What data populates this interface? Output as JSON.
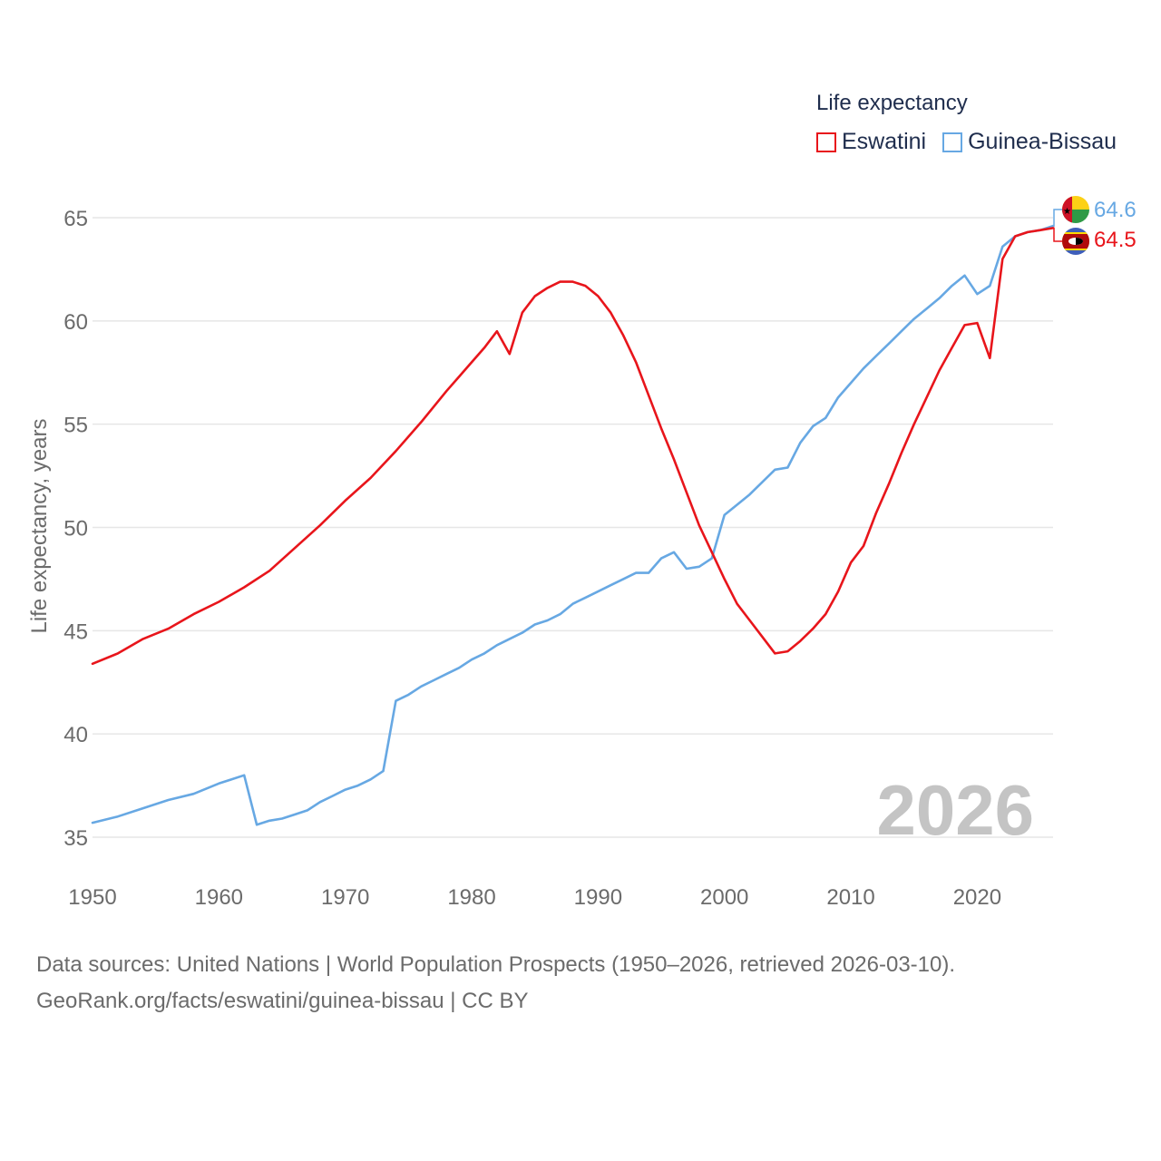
{
  "legend": {
    "title": "Life expectancy",
    "items": [
      {
        "name": "Eswatini",
        "color": "#e8151b"
      },
      {
        "name": "Guinea-Bissau",
        "color": "#67a8e3"
      }
    ]
  },
  "footer": {
    "line1": "Data sources: United Nations | World Population Prospects (1950–2026, retrieved 2026-03-10).",
    "line2": "GeoRank.org/facts/eswatini/guinea-bissau | CC BY"
  },
  "chart_data": {
    "type": "line",
    "title": "Life expectancy",
    "xlabel": "",
    "ylabel": "Life expectancy, years",
    "xlim": [
      1950,
      2026
    ],
    "ylim": [
      34,
      66
    ],
    "xticks": [
      1950,
      1960,
      1970,
      1980,
      1990,
      2000,
      2010,
      2020
    ],
    "yticks": [
      35,
      40,
      45,
      50,
      55,
      60,
      65
    ],
    "grid": "horizontal",
    "legend_position": "top-right",
    "year_watermark": "2026",
    "end_labels": {
      "Eswatini": "64.5",
      "Guinea-Bissau": "64.6"
    },
    "series": [
      {
        "name": "Eswatini",
        "color": "#e8151b",
        "points": [
          [
            1950,
            43.4
          ],
          [
            1952,
            43.9
          ],
          [
            1954,
            44.6
          ],
          [
            1956,
            45.1
          ],
          [
            1958,
            45.8
          ],
          [
            1960,
            46.4
          ],
          [
            1962,
            47.1
          ],
          [
            1964,
            47.9
          ],
          [
            1966,
            49.0
          ],
          [
            1968,
            50.1
          ],
          [
            1970,
            51.3
          ],
          [
            1972,
            52.4
          ],
          [
            1974,
            53.7
          ],
          [
            1976,
            55.1
          ],
          [
            1978,
            56.6
          ],
          [
            1980,
            58.0
          ],
          [
            1981,
            58.7
          ],
          [
            1982,
            59.5
          ],
          [
            1983,
            58.4
          ],
          [
            1984,
            60.4
          ],
          [
            1985,
            61.2
          ],
          [
            1986,
            61.6
          ],
          [
            1987,
            61.9
          ],
          [
            1988,
            61.9
          ],
          [
            1989,
            61.7
          ],
          [
            1990,
            61.2
          ],
          [
            1991,
            60.4
          ],
          [
            1992,
            59.3
          ],
          [
            1993,
            58.0
          ],
          [
            1994,
            56.4
          ],
          [
            1995,
            54.8
          ],
          [
            1996,
            53.3
          ],
          [
            1997,
            51.7
          ],
          [
            1998,
            50.1
          ],
          [
            1999,
            48.8
          ],
          [
            2000,
            47.5
          ],
          [
            2001,
            46.3
          ],
          [
            2002,
            45.5
          ],
          [
            2003,
            44.7
          ],
          [
            2004,
            43.9
          ],
          [
            2005,
            44.0
          ],
          [
            2006,
            44.5
          ],
          [
            2007,
            45.1
          ],
          [
            2008,
            45.8
          ],
          [
            2009,
            46.9
          ],
          [
            2010,
            48.3
          ],
          [
            2011,
            49.1
          ],
          [
            2012,
            50.7
          ],
          [
            2013,
            52.1
          ],
          [
            2014,
            53.6
          ],
          [
            2015,
            55.0
          ],
          [
            2016,
            56.3
          ],
          [
            2017,
            57.6
          ],
          [
            2018,
            58.7
          ],
          [
            2019,
            59.8
          ],
          [
            2020,
            59.9
          ],
          [
            2021,
            58.2
          ],
          [
            2022,
            63.0
          ],
          [
            2023,
            64.1
          ],
          [
            2024,
            64.3
          ],
          [
            2025,
            64.4
          ],
          [
            2026,
            64.5
          ]
        ]
      },
      {
        "name": "Guinea-Bissau",
        "color": "#67a8e3",
        "points": [
          [
            1950,
            35.7
          ],
          [
            1952,
            36.0
          ],
          [
            1954,
            36.4
          ],
          [
            1956,
            36.8
          ],
          [
            1958,
            37.1
          ],
          [
            1960,
            37.6
          ],
          [
            1961,
            37.8
          ],
          [
            1962,
            38.0
          ],
          [
            1963,
            35.6
          ],
          [
            1964,
            35.8
          ],
          [
            1965,
            35.9
          ],
          [
            1966,
            36.1
          ],
          [
            1967,
            36.3
          ],
          [
            1968,
            36.7
          ],
          [
            1969,
            37.0
          ],
          [
            1970,
            37.3
          ],
          [
            1971,
            37.5
          ],
          [
            1972,
            37.8
          ],
          [
            1973,
            38.2
          ],
          [
            1974,
            41.6
          ],
          [
            1975,
            41.9
          ],
          [
            1976,
            42.3
          ],
          [
            1977,
            42.6
          ],
          [
            1978,
            42.9
          ],
          [
            1979,
            43.2
          ],
          [
            1980,
            43.6
          ],
          [
            1981,
            43.9
          ],
          [
            1982,
            44.3
          ],
          [
            1983,
            44.6
          ],
          [
            1984,
            44.9
          ],
          [
            1985,
            45.3
          ],
          [
            1986,
            45.5
          ],
          [
            1987,
            45.8
          ],
          [
            1988,
            46.3
          ],
          [
            1989,
            46.6
          ],
          [
            1990,
            46.9
          ],
          [
            1991,
            47.2
          ],
          [
            1992,
            47.5
          ],
          [
            1993,
            47.8
          ],
          [
            1994,
            47.8
          ],
          [
            1995,
            48.5
          ],
          [
            1996,
            48.8
          ],
          [
            1997,
            48.0
          ],
          [
            1998,
            48.1
          ],
          [
            1999,
            48.5
          ],
          [
            2000,
            50.6
          ],
          [
            2001,
            51.1
          ],
          [
            2002,
            51.6
          ],
          [
            2003,
            52.2
          ],
          [
            2004,
            52.8
          ],
          [
            2005,
            52.9
          ],
          [
            2006,
            54.1
          ],
          [
            2007,
            54.9
          ],
          [
            2008,
            55.3
          ],
          [
            2009,
            56.3
          ],
          [
            2010,
            57.0
          ],
          [
            2011,
            57.7
          ],
          [
            2012,
            58.3
          ],
          [
            2013,
            58.9
          ],
          [
            2014,
            59.5
          ],
          [
            2015,
            60.1
          ],
          [
            2016,
            60.6
          ],
          [
            2017,
            61.1
          ],
          [
            2018,
            61.7
          ],
          [
            2019,
            62.2
          ],
          [
            2020,
            61.3
          ],
          [
            2021,
            61.7
          ],
          [
            2022,
            63.6
          ],
          [
            2023,
            64.1
          ],
          [
            2024,
            64.3
          ],
          [
            2025,
            64.4
          ],
          [
            2026,
            64.6
          ]
        ]
      }
    ]
  }
}
